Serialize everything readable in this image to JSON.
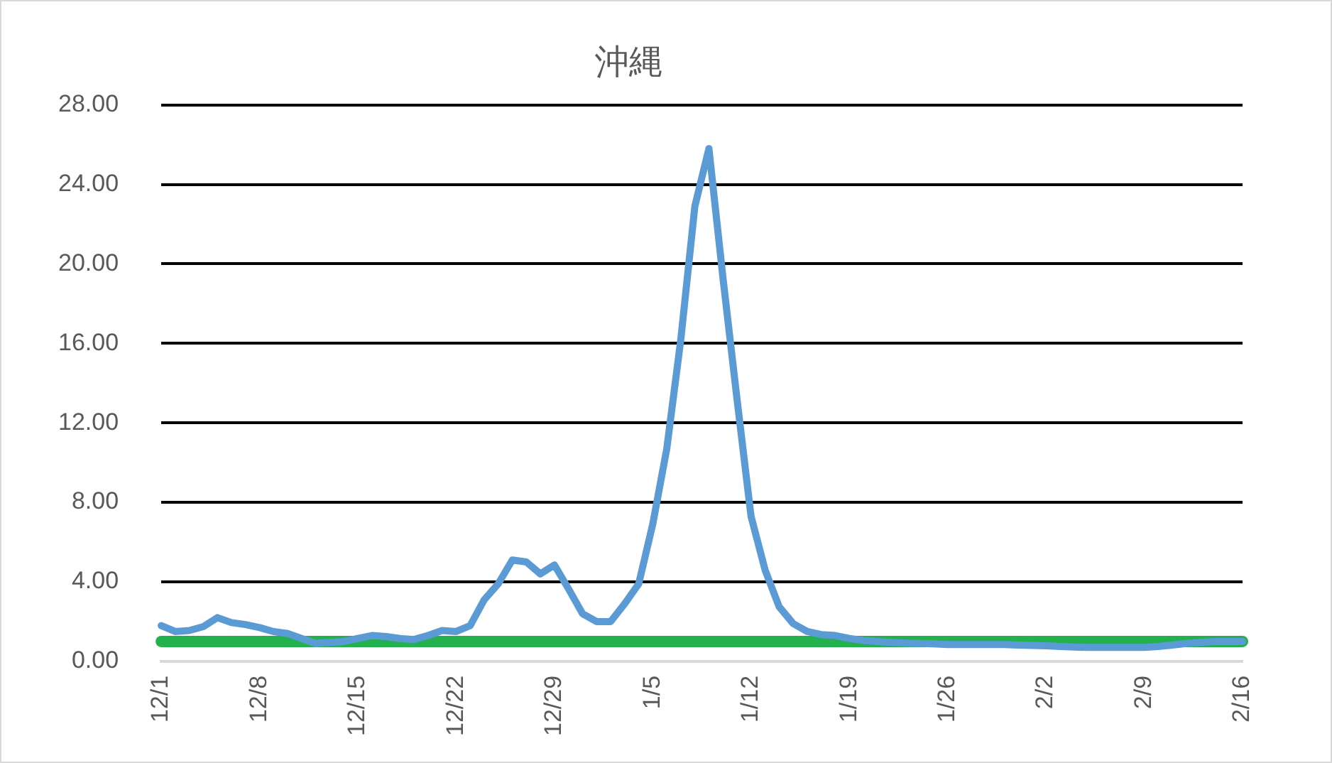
{
  "chart_data": {
    "type": "line",
    "title": "沖縄",
    "categories": [
      "12/1",
      null,
      null,
      null,
      null,
      null,
      null,
      "12/8",
      null,
      null,
      null,
      null,
      null,
      null,
      "12/15",
      null,
      null,
      null,
      null,
      null,
      null,
      "12/22",
      null,
      null,
      null,
      null,
      null,
      null,
      "12/29",
      null,
      null,
      null,
      null,
      null,
      null,
      "1/5",
      null,
      null,
      null,
      null,
      null,
      null,
      "1/12",
      null,
      null,
      null,
      null,
      null,
      null,
      "1/19",
      null,
      null,
      null,
      null,
      null,
      null,
      "1/26",
      null,
      null,
      null,
      null,
      null,
      null,
      "2/2",
      null,
      null,
      null,
      null,
      null,
      null,
      "2/9",
      null,
      null,
      null,
      null,
      null,
      null,
      "2/16"
    ],
    "series": [
      {
        "color": "#5b9bd5",
        "values": [
          1.8,
          1.5,
          1.55,
          1.75,
          2.2,
          1.95,
          1.85,
          1.7,
          1.5,
          1.4,
          1.15,
          0.9,
          0.95,
          1.0,
          1.15,
          1.3,
          1.25,
          1.15,
          1.1,
          1.3,
          1.55,
          1.5,
          1.8,
          3.1,
          3.9,
          5.1,
          5.0,
          4.4,
          4.85,
          3.65,
          2.4,
          2.0,
          2.0,
          2.9,
          3.9,
          6.9,
          10.7,
          16.2,
          22.9,
          25.8,
          19.3,
          13.2,
          7.3,
          4.6,
          2.75,
          1.9,
          1.5,
          1.35,
          1.3,
          1.15,
          1.05,
          1.0,
          0.95,
          0.92,
          0.9,
          0.88,
          0.85,
          0.85,
          0.85,
          0.85,
          0.85,
          0.82,
          0.8,
          0.78,
          0.75,
          0.72,
          0.7,
          0.7,
          0.7,
          0.7,
          0.7,
          0.75,
          0.82,
          0.9,
          0.95,
          1.0,
          1.0,
          1.0
        ]
      },
      {
        "color": "#22b14c",
        "values": [
          1,
          1,
          1,
          1,
          1,
          1,
          1,
          1,
          1,
          1,
          1,
          1,
          1,
          1,
          1,
          1,
          1,
          1,
          1,
          1,
          1,
          1,
          1,
          1,
          1,
          1,
          1,
          1,
          1,
          1,
          1,
          1,
          1,
          1,
          1,
          1,
          1,
          1,
          1,
          1,
          1,
          1,
          1,
          1,
          1,
          1,
          1,
          1,
          1,
          1,
          1,
          1,
          1,
          1,
          1,
          1,
          1,
          1,
          1,
          1,
          1,
          1,
          1,
          1,
          1,
          1,
          1,
          1,
          1,
          1,
          1,
          1,
          1,
          1,
          1,
          1,
          1,
          1
        ]
      }
    ],
    "ylim": [
      0,
      28
    ],
    "yticks": [
      {
        "value": 0,
        "label": "0.00"
      },
      {
        "value": 4,
        "label": "4.00"
      },
      {
        "value": 8,
        "label": "8.00"
      },
      {
        "value": 12,
        "label": "12.00"
      },
      {
        "value": 16,
        "label": "16.00"
      },
      {
        "value": 20,
        "label": "20.00"
      },
      {
        "value": 24,
        "label": "24.00"
      },
      {
        "value": 28,
        "label": "28.00"
      }
    ],
    "grid": "y",
    "legend": false,
    "marker": "none",
    "line_style": "solid"
  }
}
